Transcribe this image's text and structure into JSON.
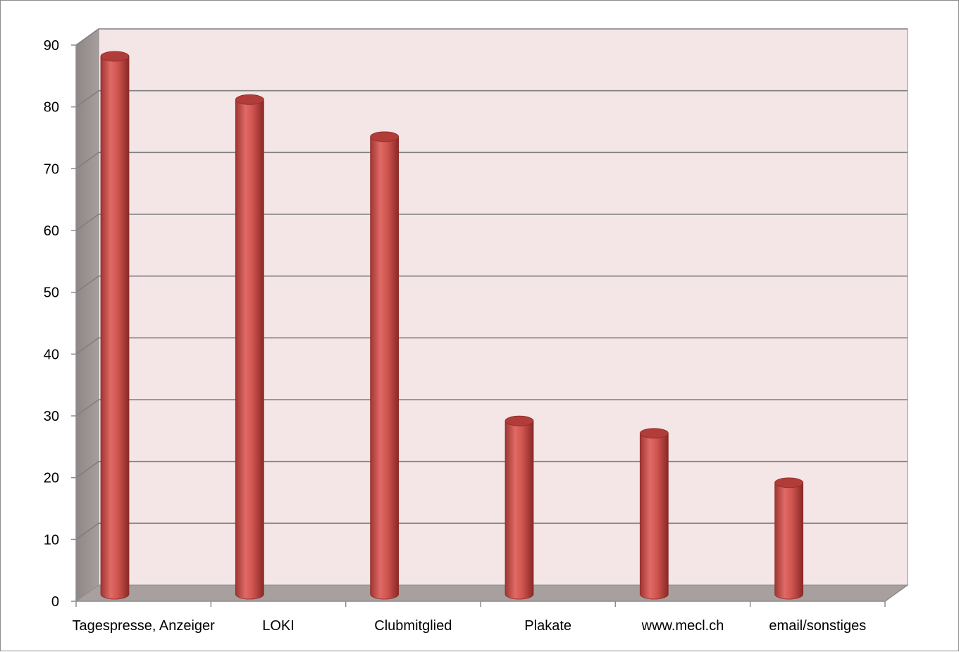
{
  "chart_data": {
    "type": "bar",
    "style": "3d-cylinder",
    "categories": [
      "Tagespresse, Anzeiger",
      "LOKI",
      "Clubmitglied",
      "Plakate",
      "www.mecl.ch",
      "email/sonstiges"
    ],
    "series": [
      {
        "values": [
          87,
          80,
          74,
          28,
          26,
          18
        ]
      }
    ],
    "title": "",
    "xlabel": "",
    "ylabel": "",
    "ylim": [
      0,
      90
    ],
    "yticks": [
      0,
      10,
      20,
      30,
      40,
      50,
      60,
      70,
      80,
      90
    ],
    "grid": true,
    "legend": "none",
    "colors": {
      "bar": "#c0504d",
      "bar_highlight": "#e8726e",
      "bar_shadow": "#8c2a28",
      "back_wall": "#f4e6e6",
      "side_wall": "#9a9291",
      "floor": "#a8a09f",
      "gridline": "#7f7f7f"
    }
  }
}
